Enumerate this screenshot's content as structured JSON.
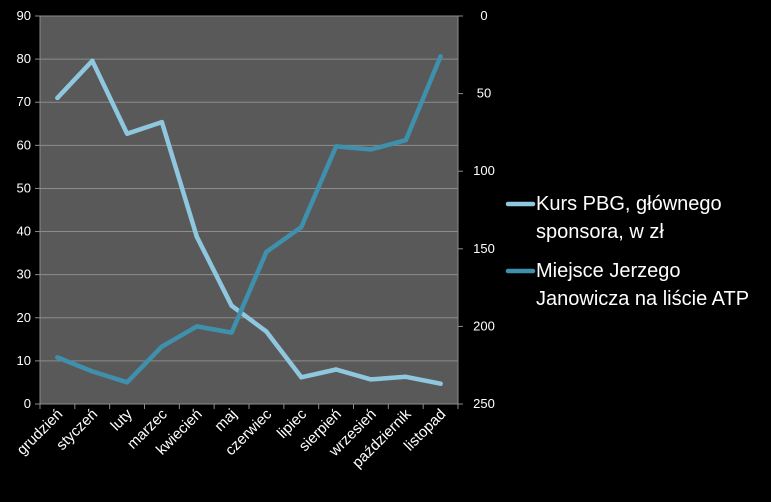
{
  "chart_data": {
    "type": "line",
    "title": "",
    "xlabel": "",
    "ylabel": "",
    "categories": [
      "grudzień",
      "styczeń",
      "luty",
      "marzec",
      "kwiecień",
      "maj",
      "czerwiec",
      "lipiec",
      "sierpień",
      "wrzesień",
      "październik",
      "listopad"
    ],
    "ylim": [
      0,
      90
    ],
    "y_ticks": [
      "0",
      "10",
      "20",
      "30",
      "40",
      "50",
      "60",
      "70",
      "80",
      "90"
    ],
    "y2lim": [
      250,
      0
    ],
    "y2_reversed": true,
    "y2_ticks": [
      "0",
      "50",
      "100",
      "150",
      "200",
      "250"
    ],
    "grid": true,
    "legend_position": "right",
    "background": "#000000",
    "plot_background": "#595959",
    "series": [
      {
        "name_lines": [
          "Kurs PBG, głównego",
          "sponsora, w zł"
        ],
        "axis": "left",
        "color": "#8fc7df",
        "values": [
          71,
          79.6,
          62.7,
          65.4,
          38.8,
          22.8,
          16.8,
          6.2,
          8,
          5.7,
          6.3,
          4.7
        ]
      },
      {
        "name_lines": [
          "Miejsce Jerzego",
          "Janowicza na liście ATP"
        ],
        "axis": "right",
        "color": "#3f90ac",
        "values": [
          220,
          229,
          236,
          213,
          200,
          204,
          152,
          136,
          84,
          86,
          80,
          26
        ]
      }
    ]
  }
}
